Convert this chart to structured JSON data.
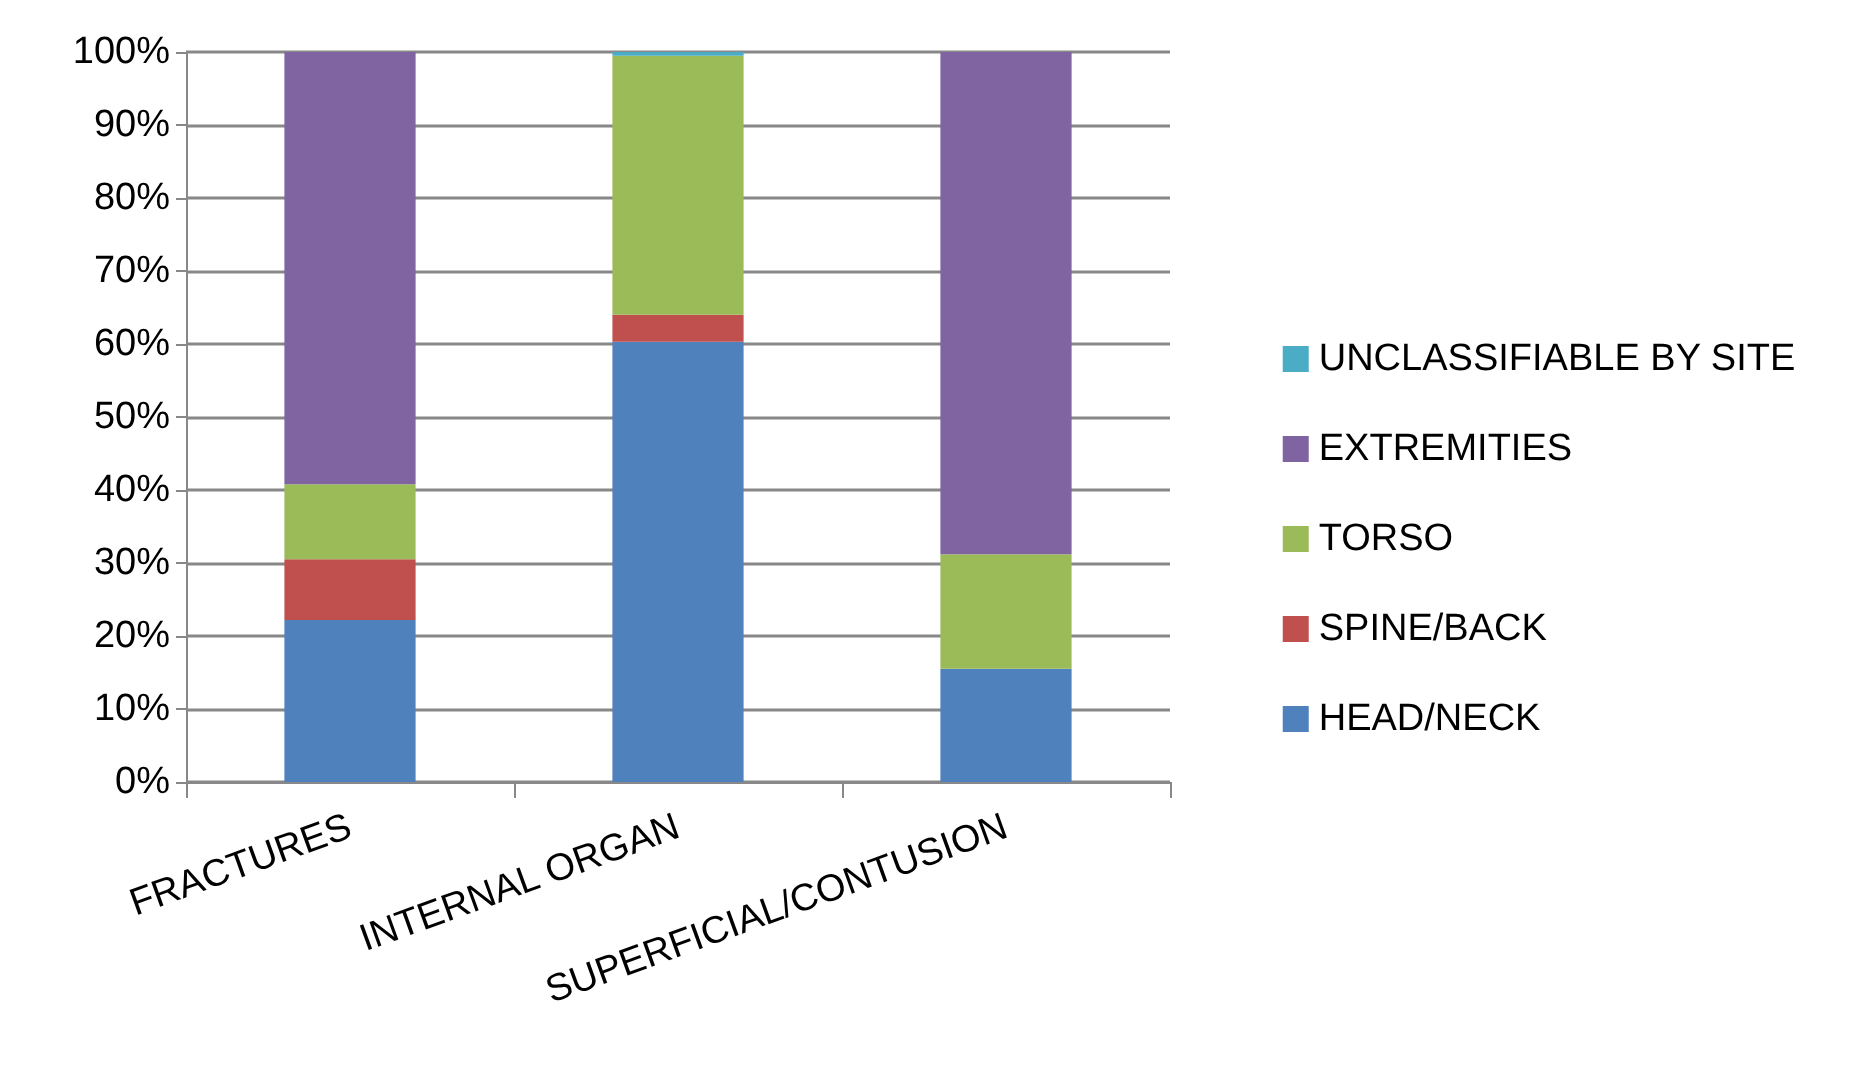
{
  "chart_data": {
    "type": "bar",
    "stacked": true,
    "categories": [
      "FRACTURES",
      "INTERNAL ORGAN",
      "SUPERFICIAL/CONTUSION"
    ],
    "series": [
      {
        "name": "HEAD/NECK",
        "color": "#4f81bd",
        "values": [
          22.2,
          60.3,
          15.5
        ]
      },
      {
        "name": "SPINE/BACK",
        "color": "#c0504d",
        "values": [
          8.3,
          3.7,
          0
        ]
      },
      {
        "name": "TORSO",
        "color": "#9bbb59",
        "values": [
          10.3,
          35.5,
          15.7
        ]
      },
      {
        "name": "EXTREMITIES",
        "color": "#8064a2",
        "values": [
          59.2,
          0,
          68.8
        ]
      },
      {
        "name": "UNCLASSIFIABLE BY SITE",
        "color": "#4bacc6",
        "values": [
          0,
          0.5,
          0
        ]
      }
    ],
    "ylim": [
      0,
      100
    ],
    "yticks": [
      {
        "value": 0,
        "label": "0%"
      },
      {
        "value": 10,
        "label": "10%"
      },
      {
        "value": 20,
        "label": "20%"
      },
      {
        "value": 30,
        "label": "30%"
      },
      {
        "value": 40,
        "label": "40%"
      },
      {
        "value": 50,
        "label": "50%"
      },
      {
        "value": 60,
        "label": "60%"
      },
      {
        "value": 70,
        "label": "70%"
      },
      {
        "value": 80,
        "label": "80%"
      },
      {
        "value": 90,
        "label": "90%"
      },
      {
        "value": 100,
        "label": "100%"
      }
    ],
    "grid": "y",
    "legend": "right"
  }
}
